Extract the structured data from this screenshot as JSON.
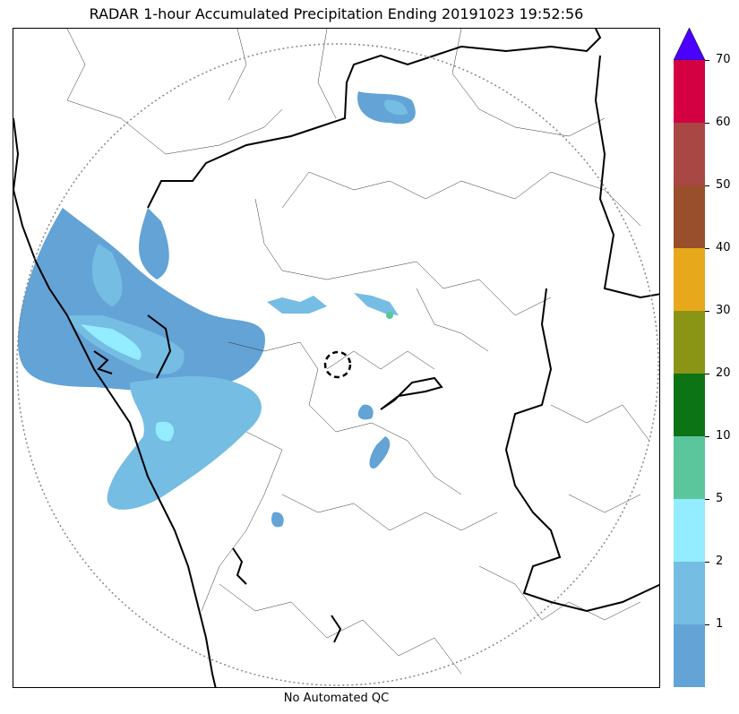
{
  "title": "RADAR 1-hour Accumulated Precipitation Ending 20191023 19:52:56",
  "footer": "No Automated QC",
  "colorbar": {
    "overflow_color": "#4b00ff",
    "bins": [
      {
        "color": "#63a3d6"
      },
      {
        "color": "#75bde3"
      },
      {
        "color": "#93ecff"
      },
      {
        "color": "#5bc59b"
      },
      {
        "color": "#0d7415"
      },
      {
        "color": "#8a9516"
      },
      {
        "color": "#e7a81b"
      },
      {
        "color": "#994f2b"
      },
      {
        "color": "#a84743"
      },
      {
        "color": "#d30042"
      }
    ],
    "labels": [
      "1",
      "2",
      "5",
      "10",
      "20",
      "30",
      "40",
      "50",
      "60",
      "70"
    ]
  }
}
